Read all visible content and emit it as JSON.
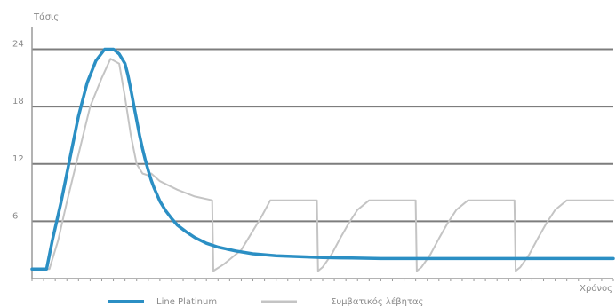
{
  "chart_data": {
    "type": "line",
    "ylabel": "Τάσις",
    "xlabel": "Χρόνος",
    "ylim": [
      0,
      26
    ],
    "xlim": [
      0,
      100
    ],
    "yticks": [
      6,
      12,
      18,
      24
    ],
    "grid": true,
    "legend_position": "bottom",
    "colors": {
      "blue": "#2b8fc4",
      "gray": "#c4c4c4",
      "grid": "#7d7d7d",
      "axis": "#9a9a9a"
    },
    "series": [
      {
        "name": "Line Platinum",
        "color": "#2b8fc4",
        "x": [
          0,
          2.5,
          3.5,
          5,
          6.5,
          8,
          9.5,
          11,
          12.5,
          14,
          15,
          16,
          16.5,
          17,
          17.5,
          18,
          18.5,
          19,
          19.5,
          20,
          20.5,
          21,
          21.5,
          22,
          23,
          24,
          25,
          26.5,
          28,
          30,
          32,
          35,
          38,
          42,
          46,
          50,
          55,
          60,
          70,
          80,
          90,
          100
        ],
        "y": [
          1,
          1,
          4,
          8,
          12.5,
          17,
          20.5,
          22.8,
          24,
          24,
          23.5,
          22.5,
          21.3,
          19.8,
          18.2,
          16.6,
          15,
          13.6,
          12.4,
          11.3,
          10.3,
          9.5,
          8.8,
          8.1,
          7.1,
          6.3,
          5.6,
          4.9,
          4.3,
          3.7,
          3.3,
          2.9,
          2.6,
          2.4,
          2.3,
          2.2,
          2.15,
          2.1,
          2.1,
          2.1,
          2.1,
          2.1
        ]
      },
      {
        "name": "Συμβατικός λέβητας",
        "color": "#c4c4c4",
        "x": [
          0,
          3,
          4.5,
          6,
          8,
          10,
          12,
          13.5,
          15,
          16,
          17,
          18,
          19,
          20,
          20.5,
          22,
          25,
          28,
          31,
          31.2,
          33,
          36,
          38,
          39.5,
          41,
          41.2,
          42.5,
          48,
          49,
          49.2,
          50,
          51.5,
          53,
          54.5,
          56,
          58,
          58.2,
          59.5,
          65,
          66,
          66.2,
          67,
          68.5,
          70,
          71.5,
          73,
          75,
          75.2,
          76.5,
          82,
          83,
          83.2,
          84,
          85.5,
          87,
          88.5,
          90,
          92,
          92.2,
          93.5,
          98,
          99.5,
          100
        ],
        "y": [
          1,
          1,
          4,
          8,
          13,
          18,
          21,
          23,
          22.5,
          19,
          15,
          12,
          11,
          10.8,
          11,
          10.2,
          9.3,
          8.6,
          8.2,
          0.8,
          1.5,
          3,
          5,
          6.5,
          8.2,
          8.2,
          8.2,
          8.2,
          8.2,
          0.8,
          1.2,
          2.5,
          4.2,
          5.8,
          7.2,
          8.2,
          8.2,
          8.2,
          8.2,
          8.2,
          0.8,
          1.2,
          2.5,
          4.2,
          5.8,
          7.2,
          8.2,
          8.2,
          8.2,
          8.2,
          8.2,
          0.8,
          1.2,
          2.5,
          4.2,
          5.8,
          7.2,
          8.2,
          8.2,
          8.2,
          8.2,
          8.2,
          8.2
        ]
      }
    ]
  }
}
